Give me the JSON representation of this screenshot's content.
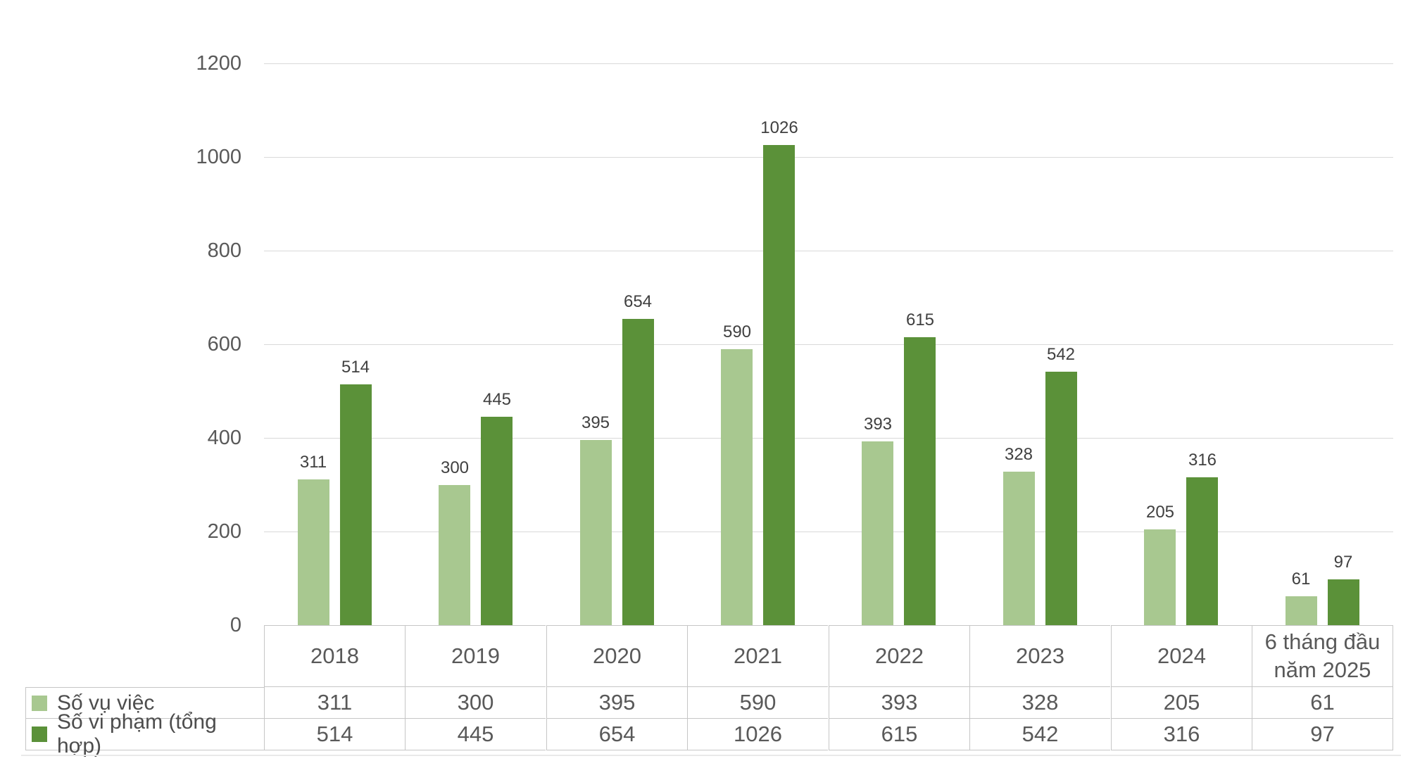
{
  "title": {
    "text": ""
  },
  "chart_data": {
    "type": "bar",
    "title": "",
    "categories": [
      "2018",
      "2019",
      "2020",
      "2021",
      "2022",
      "2023",
      "2024",
      "6 tháng đầu năm 2025"
    ],
    "series": [
      {
        "name": "Số vụ việc",
        "color": "#a8c890",
        "values": [
          311,
          300,
          395,
          590,
          393,
          328,
          205,
          61
        ]
      },
      {
        "name": "Số vi phạm (tổng hợp)",
        "color": "#5b9139",
        "values": [
          514,
          445,
          654,
          1026,
          615,
          542,
          316,
          97
        ]
      }
    ],
    "ylim": [
      0,
      1200
    ],
    "yticks": [
      0,
      200,
      400,
      600,
      800,
      1000,
      1200
    ],
    "grid": true,
    "data_labels": true,
    "legend_position": "data-table-left",
    "notes": "legend is rendered as left column of the data table beneath the x-axis"
  },
  "colors": {
    "series_light_green": "#a8c890",
    "series_dark_green": "#5b9139",
    "gridline": "#d9d9d9",
    "table_border": "#c6c6c6",
    "axis_text": "#595959",
    "value_label_text": "#404040"
  }
}
